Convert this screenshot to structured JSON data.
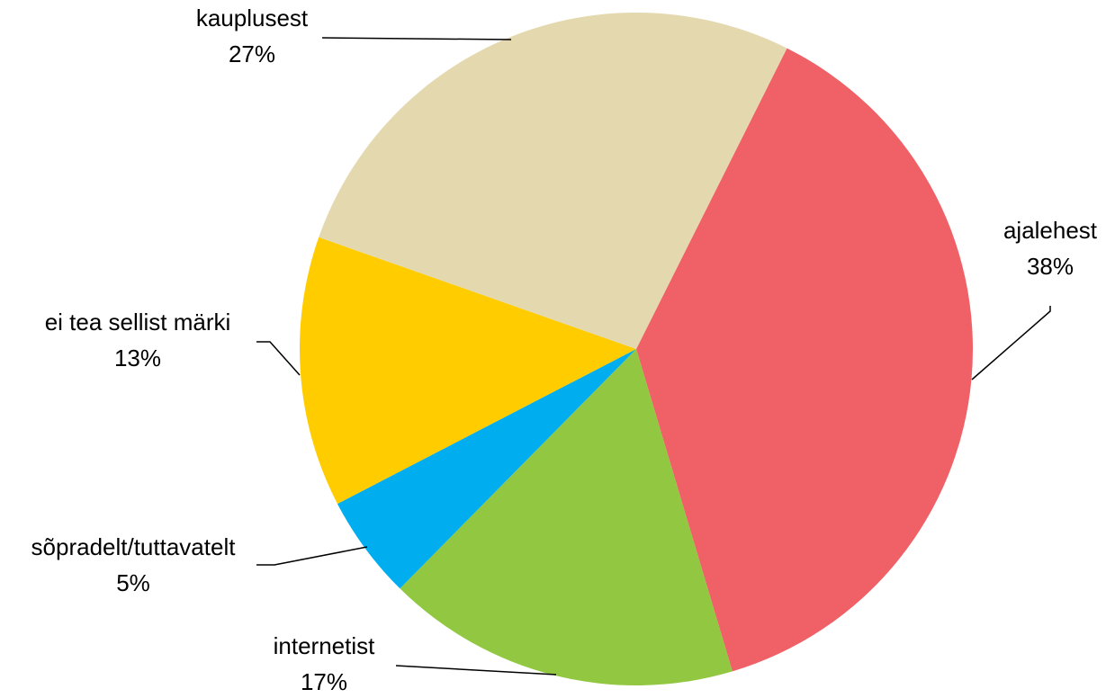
{
  "chart_data": {
    "type": "pie",
    "categories": [
      "ajalehest",
      "internetist",
      "sõpradelt/tuttavatelt",
      "ei tea sellist märki",
      "kauplusest"
    ],
    "values": [
      38,
      17,
      5,
      13,
      27
    ],
    "value_labels": [
      "38%",
      "17%",
      "5%",
      "13%",
      "27%"
    ],
    "colors": [
      "#f06167",
      "#92c742",
      "#00aeef",
      "#ffcc00",
      "#e4d9ae"
    ]
  }
}
